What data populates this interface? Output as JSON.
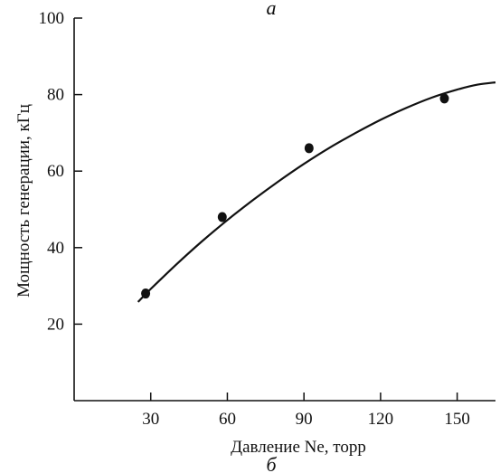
{
  "chart_data": {
    "type": "scatter",
    "top_label": "а",
    "panel_label": "б",
    "xlabel": "Давление Ne, торр",
    "ylabel": "Мощность генерации, кГц",
    "xlim": [
      0,
      165
    ],
    "ylim": [
      0,
      100
    ],
    "x_ticks": [
      30,
      60,
      90,
      120,
      150
    ],
    "y_ticks": [
      20,
      40,
      60,
      80,
      100
    ],
    "x_tick_labels": [
      "30",
      "60",
      "90",
      "120",
      "150"
    ],
    "y_tick_labels": [
      "20",
      "40",
      "60",
      "80",
      "100"
    ],
    "grid": false,
    "points": [
      {
        "x": 28,
        "y": 28
      },
      {
        "x": 58,
        "y": 48
      },
      {
        "x": 92,
        "y": 66
      },
      {
        "x": 145,
        "y": 79
      }
    ],
    "fit_curve": [
      {
        "x": 25,
        "y": 25.8
      },
      {
        "x": 30,
        "y": 29.2
      },
      {
        "x": 40,
        "y": 35.6
      },
      {
        "x": 50,
        "y": 41.6
      },
      {
        "x": 60,
        "y": 47.2
      },
      {
        "x": 70,
        "y": 52.4
      },
      {
        "x": 80,
        "y": 57.3
      },
      {
        "x": 90,
        "y": 61.9
      },
      {
        "x": 100,
        "y": 66.1
      },
      {
        "x": 110,
        "y": 69.9
      },
      {
        "x": 120,
        "y": 73.4
      },
      {
        "x": 130,
        "y": 76.5
      },
      {
        "x": 140,
        "y": 79.2
      },
      {
        "x": 150,
        "y": 81.3
      },
      {
        "x": 158,
        "y": 82.6
      },
      {
        "x": 165,
        "y": 83.2
      }
    ],
    "colors": {
      "axis": "#111111",
      "marker": "#111111",
      "curve": "#111111"
    }
  }
}
